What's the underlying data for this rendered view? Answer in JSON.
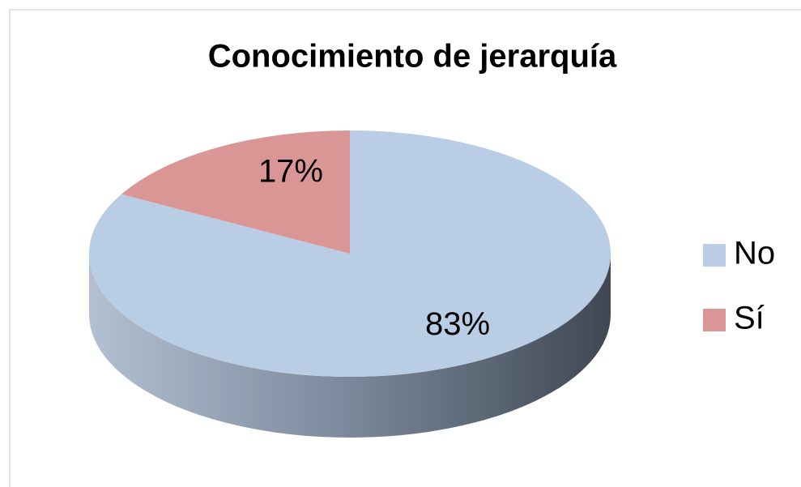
{
  "chart_data": {
    "type": "pie",
    "title": "Conocimiento de jerarquía",
    "categories": [
      "No",
      "Sí"
    ],
    "values": [
      83,
      17
    ],
    "value_labels": [
      "83%",
      "17%"
    ],
    "colors": [
      "#b9cde5",
      "#d99694"
    ],
    "legend": "right"
  }
}
